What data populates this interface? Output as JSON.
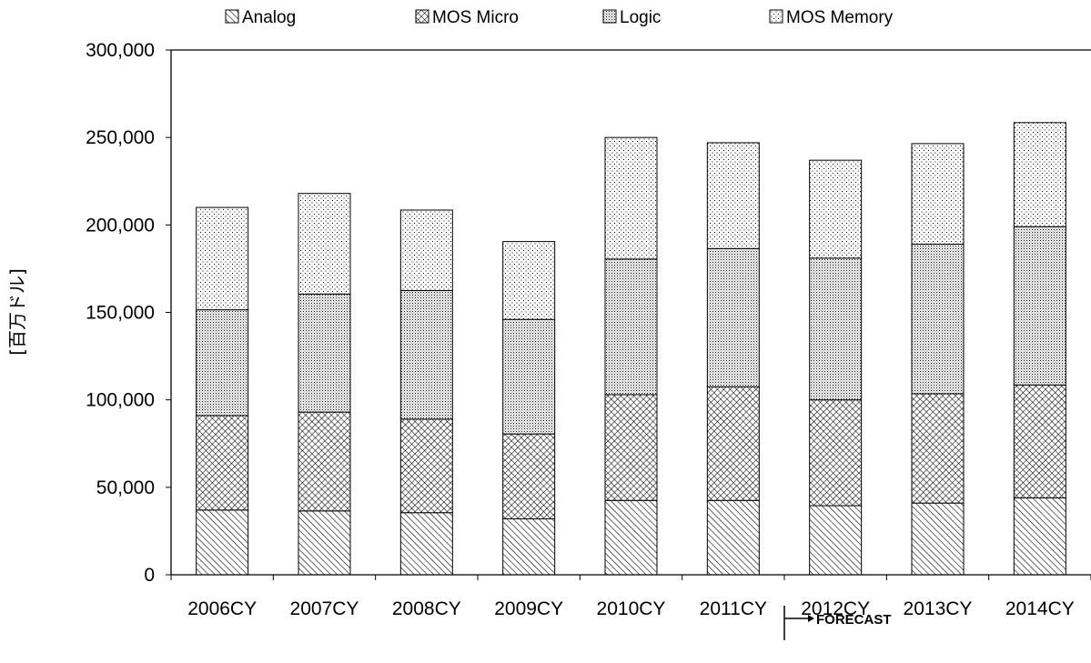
{
  "chart_data": {
    "type": "bar",
    "stacked": true,
    "categories": [
      "2006CY",
      "2007CY",
      "2008CY",
      "2009CY",
      "2010CY",
      "2011CY",
      "2012CY",
      "2013CY",
      "2014CY"
    ],
    "series": [
      {
        "name": "Analog",
        "pattern": "diagonal-hatch",
        "values": [
          37000,
          36500,
          35500,
          32000,
          42500,
          42500,
          39500,
          41000,
          44000
        ]
      },
      {
        "name": "MOS Micro",
        "pattern": "cross-hatch",
        "values": [
          54000,
          56500,
          53500,
          48500,
          60500,
          65000,
          60500,
          62500,
          64500
        ]
      },
      {
        "name": "Logic",
        "pattern": "fine-dots",
        "values": [
          60500,
          67500,
          73500,
          65500,
          77500,
          79000,
          81000,
          85500,
          90500
        ]
      },
      {
        "name": "MOS Memory",
        "pattern": "sparse-dots",
        "values": [
          58500,
          57500,
          46000,
          44500,
          69500,
          60500,
          56000,
          57500,
          59500
        ]
      }
    ],
    "xlabel": "",
    "ylabel": "[百万ドル]",
    "ylim": [
      0,
      300000
    ],
    "yticks": [
      0,
      50000,
      100000,
      150000,
      200000,
      250000,
      300000
    ],
    "ytick_labels": [
      "0",
      "50,000",
      "100,000",
      "150,000",
      "200,000",
      "250,000",
      "300,000"
    ],
    "grid": false,
    "legend_position": "top",
    "annotation": {
      "text": "FORECAST",
      "starts_at": "2012CY"
    },
    "colors": {
      "bar_fill": "#ffffff",
      "pattern_ink": "#000000",
      "axis": "#000000"
    }
  }
}
